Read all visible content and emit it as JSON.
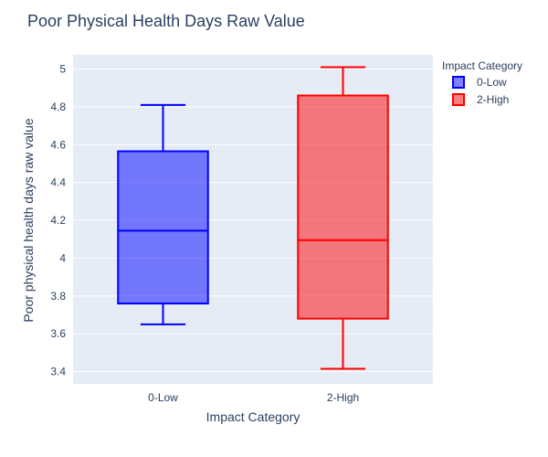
{
  "chart_data": {
    "type": "box",
    "title": "Poor Physical Health Days Raw Value",
    "xlabel": "Impact Category",
    "ylabel": "Poor physical health days raw value",
    "categories": [
      "0-Low",
      "2-High"
    ],
    "ylim": [
      3.335,
      5.075
    ],
    "yticks": [
      3.4,
      3.6,
      3.8,
      4,
      4.2,
      4.4,
      4.6,
      4.8,
      5
    ],
    "ytick_labels": [
      "3.4",
      "3.6",
      "3.8",
      "4",
      "4.2",
      "4.4",
      "4.6",
      "4.8",
      "5"
    ],
    "legend": {
      "title": "Impact Category",
      "placement": "top-right"
    },
    "grid": true,
    "series": [
      {
        "name": "0-Low",
        "category": "0-Low",
        "min": 3.65,
        "q1": 3.76,
        "median": 4.145,
        "q3": 4.565,
        "max": 4.81,
        "color": "#0000ff",
        "fill": "rgba(0,0,255,0.5)"
      },
      {
        "name": "2-High",
        "category": "2-High",
        "min": 3.415,
        "q1": 3.68,
        "median": 4.095,
        "q3": 4.86,
        "max": 5.01,
        "color": "#ff0000",
        "fill": "rgba(255,0,0,0.5)"
      }
    ]
  },
  "style": {
    "plot_bg": "#E5ECF6",
    "grid_color": "#ffffff",
    "text_color": "#2a3f5f"
  }
}
